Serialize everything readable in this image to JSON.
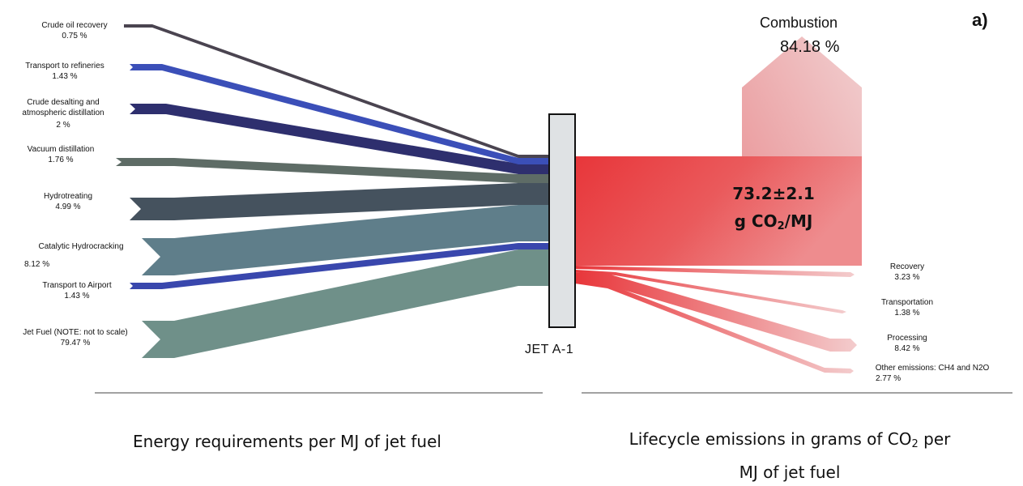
{
  "panel_label": "a)",
  "center_label": "JET A-1",
  "energy_inputs": [
    {
      "name": "Crude oil recovery",
      "value": "0.75 %",
      "color": "#4a4450"
    },
    {
      "name": "Transport to refineries",
      "value": "1.43 %",
      "color": "#3b4fb8"
    },
    {
      "name": "Crude desalting and atmospheric distillation",
      "value": "2 %",
      "color": "#2e2f6e"
    },
    {
      "name": "Vacuum distillation",
      "value": "1.76 %",
      "color": "#5e6c66"
    },
    {
      "name": "Hydrotreating",
      "value": "4.99 %",
      "color": "#45525e"
    },
    {
      "name": "Catalytic Hydrocracking",
      "value": "8.12 %",
      "color": "#5f7e8a"
    },
    {
      "name": "Transport to Airport",
      "value": "1.43 %",
      "color": "#3947ad"
    },
    {
      "name": "Jet Fuel (NOTE: not to scale)",
      "value": "79.47 %",
      "color": "#6f9089"
    }
  ],
  "emissions": {
    "combustion_label": "Combustion",
    "combustion_value": "84.18 %",
    "total_value": "73.2±2.1",
    "total_unit_prefix": "g CO",
    "total_unit_sub": "2",
    "total_unit_suffix": "/MJ",
    "outputs": [
      {
        "name": "Recovery",
        "value": "3.23 %"
      },
      {
        "name": "Transportation",
        "value": "1.38 %"
      },
      {
        "name": "Processing",
        "value": "8.42 %"
      },
      {
        "name": "Other emissions: CH4 and N2O",
        "value": "2.77 %"
      }
    ],
    "color_strong": "#e8363a",
    "color_light": "#eab8bb"
  },
  "subtitles": {
    "left": "Energy requirements per MJ of jet fuel",
    "right_prefix": "Lifecycle emissions in grams of CO",
    "right_sub": "2",
    "right_suffix": " per",
    "right_line2": "MJ of jet fuel"
  }
}
